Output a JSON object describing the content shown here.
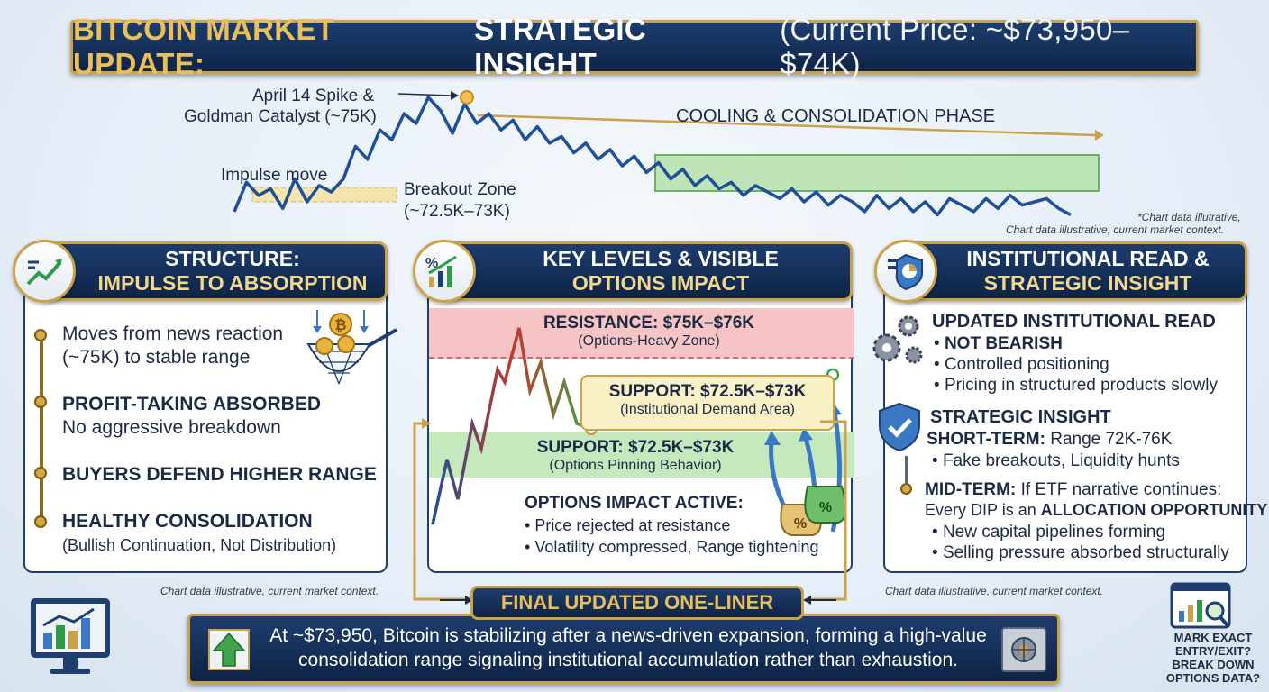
{
  "header": {
    "title_part1": "BITCOIN MARKET UPDATE:",
    "title_part2": "STRATEGIC INSIGHT",
    "title_part3": "(Current Price: ~$73,950–$74K)"
  },
  "chart_data": {
    "type": "line",
    "x": [
      0,
      1,
      2,
      3,
      4,
      5,
      6,
      7,
      8,
      9,
      10,
      11,
      12,
      13,
      14,
      15,
      16,
      17,
      18,
      19,
      20,
      21,
      22,
      23,
      24,
      25,
      26,
      27,
      28,
      29,
      30,
      31,
      32,
      33,
      34,
      35,
      36,
      37,
      38,
      39,
      40,
      41,
      42,
      43,
      44,
      45,
      46,
      47,
      48,
      49,
      50,
      51,
      52,
      53,
      54,
      55,
      56,
      57,
      58,
      59,
      60,
      61,
      62,
      63,
      64,
      65,
      66,
      67,
      68,
      69
    ],
    "y": [
      30,
      48,
      40,
      44,
      32,
      50,
      36,
      46,
      42,
      50,
      70,
      62,
      80,
      74,
      90,
      84,
      100,
      92,
      78,
      96,
      84,
      90,
      80,
      86,
      74,
      82,
      72,
      76,
      66,
      72,
      62,
      68,
      58,
      64,
      54,
      60,
      50,
      56,
      46,
      52,
      44,
      48,
      40,
      46,
      42,
      38,
      44,
      36,
      42,
      34,
      40,
      36,
      30,
      40,
      32,
      38,
      30,
      36,
      28,
      38,
      34,
      30,
      38,
      32,
      40,
      34,
      36,
      38,
      32,
      28
    ],
    "annotations": [
      "April 14 Spike & Goldman Catalyst (~75K)",
      "Impulse move",
      "Breakout Zone (~72.5K–73K)",
      "COOLING & CONSOLIDATION PHASE"
    ],
    "series": [
      {
        "name": "",
        "color": "#1f4f96"
      }
    ],
    "note": "*Chart data illutrative,",
    "note2": "Chart data illustrative, current market context."
  },
  "structure": {
    "title_line1": "STRUCTURE:",
    "title_line2": "IMPULSE TO ABSORPTION",
    "items": [
      {
        "line1": "Moves from news reaction",
        "line2": "(~75K) to stable range"
      },
      {
        "line1": "PROFIT-TAKING ABSORBED",
        "line2": "No aggressive breakdown"
      },
      {
        "line1": "BUYERS DEFEND HIGHER RANGE",
        "line2": ""
      },
      {
        "line1": "HEALTHY CONSOLIDATION",
        "line2": "(Bullish Continuation, Not Distribution)"
      }
    ],
    "coin_symbol": "₿"
  },
  "key_levels": {
    "title_line1": "KEY LEVELS & VISIBLE",
    "title_line2": "OPTIONS IMPACT",
    "resistance": "RESISTANCE: $75K–$76K",
    "resistance_sub": "(Options-Heavy Zone)",
    "support1": "SUPPORT: $72.5K–$73K",
    "support1_sub": "(Institutional Demand Area)",
    "support2": "SUPPORT: $72.5K–$73K",
    "support2_sub": "(Options Pinning Behavior)",
    "impact_title": "OPTIONS IMPACT ACTIVE:",
    "impact_items": [
      "Price rejected at resistance",
      "Volatility compressed, Range tightening"
    ],
    "bag_symbol": "%"
  },
  "institutional": {
    "title_line1": "INSTITUTIONAL READ &",
    "title_line2": "STRATEGIC INSIGHT",
    "read_title": "UPDATED INSTITUTIONAL READ",
    "read_items": [
      "NOT BEARISH",
      "Controlled positioning",
      "Pricing in structured products slowly"
    ],
    "insight_title": "STRATEGIC INSIGHT",
    "short_term_label": "SHORT-TERM:",
    "short_term_value": "Range 72K-76K",
    "short_term_item": "Fake breakouts, Liquidity hunts",
    "mid_term_label": "MID-TERM:",
    "mid_term_value": "If ETF narrative continues:",
    "mid_term_line2a": "Every DIP is an ",
    "mid_term_line2b": "ALLOCATION OPPORTUNITY",
    "mid_term_items": [
      "New capital pipelines forming",
      "Selling pressure absorbed structurally"
    ]
  },
  "footer": {
    "note_left": "Chart data illustrative, current market context.",
    "note_right": "Chart data illustrative, current market context.",
    "one_liner_label": "FINAL UPDATED ONE-LINER",
    "one_liner_text": "At ~$73,950, Bitcoin is stabilizing after a news-driven expansion, forming a high-value consolidation range signaling institutional accumulation rather than exhaustion.",
    "question": "MARK EXACT ENTRY/EXIT? BREAK DOWN OPTIONS DATA?"
  },
  "colors": {
    "navy": "#0f2548",
    "gold": "#c9a24a",
    "line": "#1f4f96",
    "green_zone": "#b9e3b0",
    "red_zone": "#f6c4c4"
  }
}
